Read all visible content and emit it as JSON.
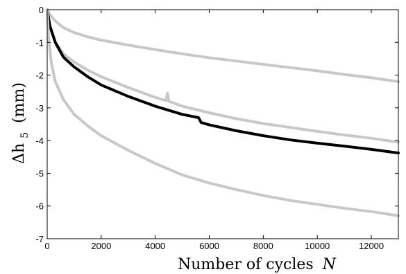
{
  "chart_data": {
    "type": "line",
    "title": "",
    "xlabel": {
      "text": "Number of cycles",
      "symbol": "N"
    },
    "ylabel": {
      "text": "Δh",
      "sub": "5",
      "unit": "(mm)"
    },
    "xlim": [
      0,
      13000
    ],
    "ylim": [
      -7,
      0
    ],
    "xticks": [
      0,
      2000,
      4000,
      6000,
      8000,
      10000,
      12000
    ],
    "yticks": [
      0,
      -1,
      -2,
      -3,
      -4,
      -5,
      -6,
      -7
    ],
    "grid": false,
    "legend": "none",
    "series": [
      {
        "color": "#c8c8c8",
        "x": [
          0,
          100,
          300,
          600,
          1000,
          1500,
          2000,
          3000,
          4000,
          5000,
          6000,
          7000,
          8000,
          9000,
          10000,
          11000,
          12000,
          13000
        ],
        "y": [
          0,
          -0.15,
          -0.35,
          -0.55,
          -0.7,
          -0.83,
          -0.93,
          -1.08,
          -1.22,
          -1.35,
          -1.47,
          -1.57,
          -1.67,
          -1.77,
          -1.87,
          -1.98,
          -2.08,
          -2.2
        ]
      },
      {
        "color": "#c8c8c8",
        "x": [
          0,
          100,
          300,
          600,
          1000,
          1500,
          2000,
          3000,
          4000,
          4400,
          4450,
          4500,
          5000,
          6000,
          7000,
          8000,
          9000,
          10000,
          11000,
          12000,
          13000
        ],
        "y": [
          0,
          -0.5,
          -1.0,
          -1.35,
          -1.6,
          -1.85,
          -2.05,
          -2.38,
          -2.68,
          -2.78,
          -2.55,
          -2.8,
          -2.95,
          -3.15,
          -3.33,
          -3.48,
          -3.6,
          -3.72,
          -3.83,
          -3.93,
          -4.05
        ]
      },
      {
        "color": "#000000",
        "x": [
          0,
          100,
          300,
          600,
          1000,
          1500,
          2000,
          3000,
          4000,
          5000,
          5600,
          5700,
          6000,
          7000,
          8000,
          9000,
          10000,
          11000,
          12000,
          13000
        ],
        "y": [
          0,
          -0.5,
          -1.0,
          -1.45,
          -1.75,
          -2.05,
          -2.3,
          -2.65,
          -2.95,
          -3.2,
          -3.3,
          -3.45,
          -3.52,
          -3.7,
          -3.85,
          -3.98,
          -4.08,
          -4.17,
          -4.27,
          -4.38
        ]
      },
      {
        "color": "#c8c8c8",
        "x": [
          0,
          50,
          150,
          300,
          600,
          1000,
          1500,
          2000,
          3000,
          4000,
          5000,
          6000,
          7000,
          8000,
          9000,
          10000,
          11000,
          12000,
          13000
        ],
        "y": [
          0,
          -0.8,
          -1.6,
          -2.2,
          -2.75,
          -3.2,
          -3.55,
          -3.85,
          -4.3,
          -4.7,
          -5.05,
          -5.3,
          -5.5,
          -5.68,
          -5.83,
          -5.95,
          -6.07,
          -6.17,
          -6.3
        ]
      }
    ]
  }
}
